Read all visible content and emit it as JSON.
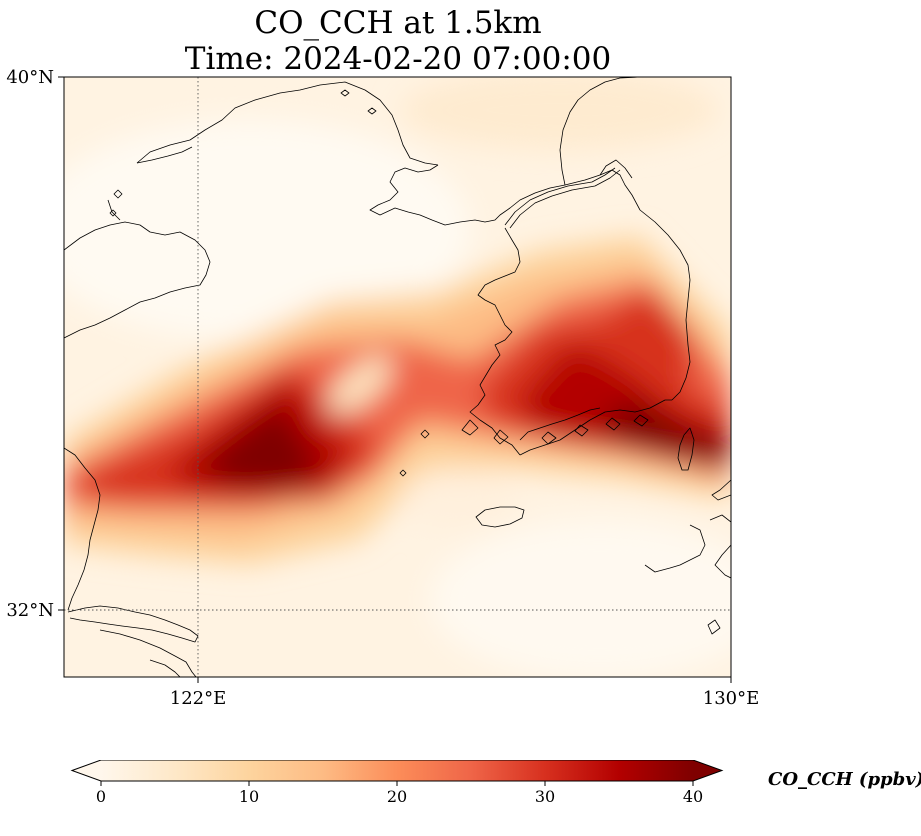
{
  "title": {
    "line1": "CO_CCH at 1.5km",
    "line2": "Time: 2024-02-20 07:00:00"
  },
  "map": {
    "lon_range": [
      121.1,
      130.0
    ],
    "lat_range": [
      31.1,
      40.0
    ],
    "lat_ticks": [
      {
        "value": 40,
        "label": "40°N"
      },
      {
        "value": 32,
        "label": "32°N"
      }
    ],
    "lon_ticks": [
      {
        "value": 122,
        "label": "122°E"
      },
      {
        "value": 130,
        "label": "130°E"
      }
    ],
    "gridlines": {
      "lons": [
        122
      ],
      "lats": [
        32
      ],
      "style": "dotted"
    },
    "field_variable": "CO_CCH",
    "field_description": "Broad band of high CO_CCH (30-40+ ppbv) stretching from the East China coast (~121-124°E, 32.5-34.5°N) northeast across the Yellow Sea to the Korean peninsula and Korea Strait (~126-130°E, 33.5-35.5°N); low values (<5 ppbv) elsewhere."
  },
  "colorbar": {
    "label": "CO_CCH (ppbv)",
    "min": 0,
    "max": 40,
    "ticks": [
      0,
      10,
      20,
      30,
      40
    ],
    "extend": "both",
    "colormap": "OrRd",
    "colors": [
      "#fff7ec",
      "#fee8c8",
      "#fdd49e",
      "#fdbb84",
      "#fc8d59",
      "#ef6548",
      "#d7301f",
      "#b30000",
      "#7f0000"
    ]
  }
}
